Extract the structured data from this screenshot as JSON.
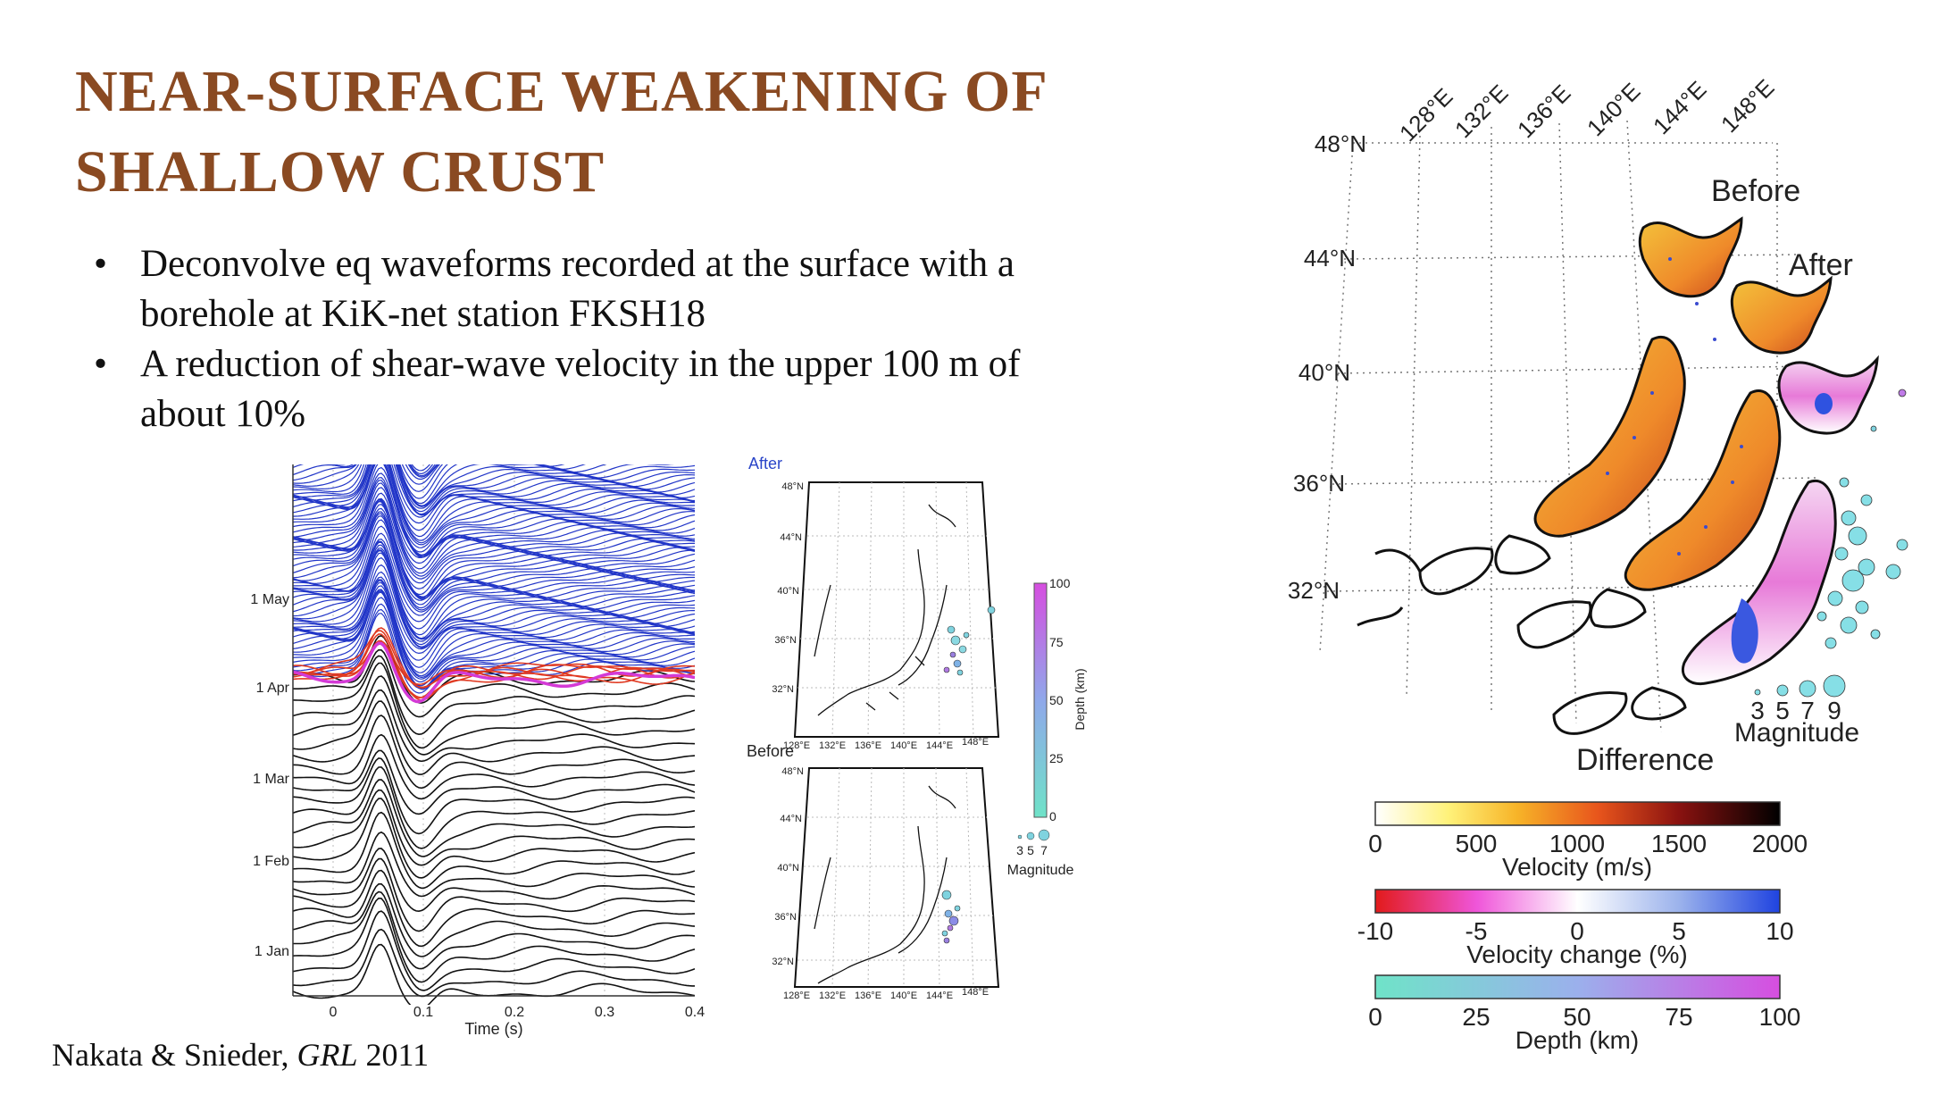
{
  "slide": {
    "title_line1": "NEAR-SURFACE WEAKENING OF",
    "title_line2": "SHALLOW CRUST",
    "bullets": [
      {
        "marker": "•",
        "text_line1": "Deconvolve eq waveforms recorded at the surface with a",
        "text_line2": "borehole at KiK-net station FKSH18"
      },
      {
        "marker": "•",
        "text_line1": "A reduction of shear-wave velocity in the upper 100 m of",
        "text_line2": "about 10%"
      }
    ],
    "citation_prefix": "Nakata & Snieder, ",
    "citation_journal": "GRL",
    "citation_year": " 2011"
  },
  "waveform_plot": {
    "date_labels": [
      "1 May",
      "1 Apr",
      "1 Mar",
      "1 Feb",
      "1 Jan"
    ],
    "x_ticks": [
      "0",
      "0.1",
      "0.2",
      "0.3",
      "0.4"
    ],
    "xlabel": "Time (s)"
  },
  "small_maps": {
    "after_label": "After",
    "before_label": "Before",
    "lon_labels": [
      "128°E",
      "132°E",
      "136°E",
      "140°E",
      "144°E",
      "148°E"
    ],
    "lat_labels": [
      "48°N",
      "44°N",
      "40°N",
      "36°N",
      "32°N"
    ],
    "depth_ticks": [
      "100",
      "75",
      "50",
      "25",
      "0"
    ],
    "depth_label": "Depth (km)",
    "magnitude_ticks": [
      "3",
      "5",
      "7"
    ],
    "magnitude_label": "Magnitude"
  },
  "big_map": {
    "lon_labels": [
      "128°E",
      "132°E",
      "136°E",
      "140°E",
      "144°E",
      "148°E"
    ],
    "lat_labels": [
      "48°N",
      "44°N",
      "40°N",
      "36°N",
      "32°N"
    ],
    "before_label": "Before",
    "after_label": "After",
    "difference_label": "Difference",
    "magnitude_ticks": [
      "3",
      "5",
      "7",
      "9"
    ],
    "magnitude_label": "Magnitude",
    "colorbars": [
      {
        "ticks": [
          "0",
          "500",
          "1000",
          "1500",
          "2000"
        ],
        "label": "Velocity (m/s)"
      },
      {
        "ticks": [
          "-10",
          "-5",
          "0",
          "5",
          "10"
        ],
        "label": "Velocity change (%)"
      },
      {
        "ticks": [
          "0",
          "25",
          "50",
          "75",
          "100"
        ],
        "label": "Depth (km)"
      }
    ]
  },
  "colors": {
    "title": "#8a4a22",
    "after_trace": "#2236c8",
    "before_trace": "#111111",
    "red_trace": "#e03a22",
    "magenta_trace": "#d43ad6"
  }
}
